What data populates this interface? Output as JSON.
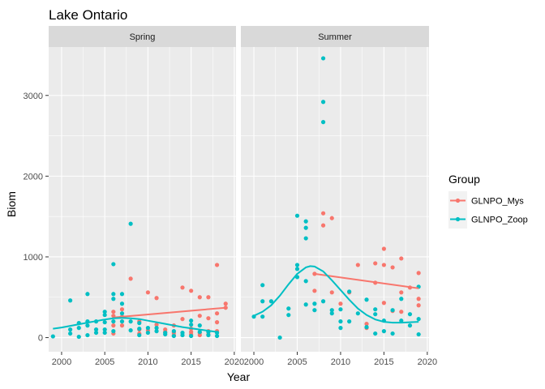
{
  "chart_data": {
    "type": "scatter",
    "title": "Lake Ontario",
    "xlabel": "Year",
    "ylabel": "Biom",
    "xlim": [
      1998.5,
      2020.2
    ],
    "ylim": [
      -175,
      3600
    ],
    "x_ticks": [
      2000,
      2005,
      2010,
      2015,
      2020
    ],
    "x_tick_labels": [
      "2000",
      "2005",
      "2010",
      "2015",
      "2020"
    ],
    "y_ticks": [
      0,
      1000,
      2000,
      3000
    ],
    "y_tick_labels": [
      "0",
      "1000",
      "2000",
      "3000"
    ],
    "grid": true,
    "legend_position": "right",
    "legend": {
      "title": "Group",
      "entries": [
        {
          "name": "GLNPO_Mys",
          "color": "#F8766D"
        },
        {
          "name": "GLNPO_Zoop",
          "color": "#00BFC4"
        }
      ]
    },
    "panels": [
      {
        "name": "Spring",
        "series": [
          {
            "name": "GLNPO_Mys",
            "color": "#F8766D",
            "points": [
              [
                2006,
                50
              ],
              [
                2006,
                150
              ],
              [
                2006,
                270
              ],
              [
                2006,
                320
              ],
              [
                2007,
                150
              ],
              [
                2007,
                260
              ],
              [
                2007,
                350
              ],
              [
                2008,
                730
              ],
              [
                2009,
                50
              ],
              [
                2009,
                100
              ],
              [
                2009,
                200
              ],
              [
                2010,
                560
              ],
              [
                2010,
                90
              ],
              [
                2011,
                490
              ],
              [
                2011,
                160
              ],
              [
                2012,
                70
              ],
              [
                2012,
                100
              ],
              [
                2013,
                150
              ],
              [
                2013,
                30
              ],
              [
                2013,
                60
              ],
              [
                2014,
                620
              ],
              [
                2014,
                230
              ],
              [
                2015,
                580
              ],
              [
                2015,
                110
              ],
              [
                2015,
                40
              ],
              [
                2015,
                70
              ],
              [
                2016,
                500
              ],
              [
                2016,
                270
              ],
              [
                2016,
                30
              ],
              [
                2016,
                60
              ],
              [
                2017,
                500
              ],
              [
                2017,
                240
              ],
              [
                2017,
                80
              ],
              [
                2017,
                40
              ],
              [
                2018,
                900
              ],
              [
                2018,
                190
              ],
              [
                2018,
                300
              ],
              [
                2018,
                80
              ],
              [
                2019,
                370
              ],
              [
                2019,
                420
              ]
            ]
          },
          {
            "name": "GLNPO_Zoop",
            "color": "#00BFC4",
            "points": [
              [
                1999,
                15
              ],
              [
                2001,
                460
              ],
              [
                2001,
                50
              ],
              [
                2001,
                100
              ],
              [
                2002,
                10
              ],
              [
                2002,
                120
              ],
              [
                2002,
                180
              ],
              [
                2003,
                540
              ],
              [
                2003,
                150
              ],
              [
                2003,
                30
              ],
              [
                2003,
                200
              ],
              [
                2004,
                200
              ],
              [
                2004,
                100
              ],
              [
                2004,
                60
              ],
              [
                2005,
                280
              ],
              [
                2005,
                320
              ],
              [
                2005,
                190
              ],
              [
                2005,
                100
              ],
              [
                2005,
                60
              ],
              [
                2006,
                910
              ],
              [
                2006,
                540
              ],
              [
                2006,
                480
              ],
              [
                2006,
                200
              ],
              [
                2006,
                80
              ],
              [
                2007,
                540
              ],
              [
                2007,
                420
              ],
              [
                2007,
                300
              ],
              [
                2007,
                200
              ],
              [
                2008,
                1410
              ],
              [
                2008,
                200
              ],
              [
                2008,
                90
              ],
              [
                2009,
                180
              ],
              [
                2009,
                110
              ],
              [
                2009,
                30
              ],
              [
                2010,
                120
              ],
              [
                2010,
                60
              ],
              [
                2011,
                120
              ],
              [
                2011,
                80
              ],
              [
                2012,
                60
              ],
              [
                2012,
                40
              ],
              [
                2013,
                80
              ],
              [
                2013,
                20
              ],
              [
                2014,
                30
              ],
              [
                2014,
                60
              ],
              [
                2015,
                210
              ],
              [
                2015,
                160
              ],
              [
                2015,
                20
              ],
              [
                2016,
                150
              ],
              [
                2016,
                70
              ],
              [
                2017,
                70
              ],
              [
                2017,
                30
              ],
              [
                2018,
                60
              ],
              [
                2018,
                20
              ]
            ]
          }
        ],
        "trend_lines": [
          {
            "name": "GLNPO_Mys",
            "color": "#F8766D",
            "points": [
              [
                2006,
                250
              ],
              [
                2019,
                370
              ]
            ]
          },
          {
            "name": "GLNPO_Zoop",
            "color": "#00BFC4",
            "points": [
              [
                1999,
                110
              ],
              [
                2000,
                125
              ],
              [
                2001,
                145
              ],
              [
                2002,
                165
              ],
              [
                2003,
                185
              ],
              [
                2004,
                205
              ],
              [
                2005,
                225
              ],
              [
                2006,
                240
              ],
              [
                2007,
                245
              ],
              [
                2008,
                240
              ],
              [
                2009,
                230
              ],
              [
                2010,
                210
              ],
              [
                2011,
                190
              ],
              [
                2012,
                170
              ],
              [
                2013,
                150
              ],
              [
                2014,
                130
              ],
              [
                2015,
                115
              ],
              [
                2016,
                100
              ],
              [
                2017,
                85
              ],
              [
                2018,
                70
              ]
            ]
          }
        ]
      },
      {
        "name": "Summer",
        "series": [
          {
            "name": "GLNPO_Mys",
            "color": "#F8766D",
            "points": [
              [
                2007,
                790
              ],
              [
                2007,
                580
              ],
              [
                2008,
                1540
              ],
              [
                2008,
                1390
              ],
              [
                2009,
                1480
              ],
              [
                2009,
                560
              ],
              [
                2010,
                420
              ],
              [
                2011,
                560
              ],
              [
                2012,
                900
              ],
              [
                2013,
                170
              ],
              [
                2013,
                120
              ],
              [
                2014,
                920
              ],
              [
                2014,
                680
              ],
              [
                2015,
                1100
              ],
              [
                2015,
                900
              ],
              [
                2015,
                430
              ],
              [
                2016,
                870
              ],
              [
                2016,
                330
              ],
              [
                2017,
                980
              ],
              [
                2017,
                560
              ],
              [
                2017,
                320
              ],
              [
                2018,
                620
              ],
              [
                2019,
                800
              ],
              [
                2019,
                480
              ],
              [
                2019,
                400
              ]
            ]
          },
          {
            "name": "GLNPO_Zoop",
            "color": "#00BFC4",
            "points": [
              [
                2000,
                260
              ],
              [
                2001,
                650
              ],
              [
                2001,
                260
              ],
              [
                2001,
                450
              ],
              [
                2002,
                450
              ],
              [
                2003,
                0
              ],
              [
                2004,
                360
              ],
              [
                2004,
                280
              ],
              [
                2005,
                1510
              ],
              [
                2005,
                900
              ],
              [
                2005,
                850
              ],
              [
                2005,
                750
              ],
              [
                2006,
                1440
              ],
              [
                2006,
                1360
              ],
              [
                2006,
                1230
              ],
              [
                2006,
                410
              ],
              [
                2006,
                700
              ],
              [
                2007,
                420
              ],
              [
                2007,
                340
              ],
              [
                2008,
                3460
              ],
              [
                2008,
                2920
              ],
              [
                2008,
                2670
              ],
              [
                2008,
                450
              ],
              [
                2009,
                340
              ],
              [
                2009,
                300
              ],
              [
                2010,
                350
              ],
              [
                2010,
                200
              ],
              [
                2010,
                120
              ],
              [
                2011,
                200
              ],
              [
                2011,
                570
              ],
              [
                2012,
                300
              ],
              [
                2013,
                470
              ],
              [
                2013,
                130
              ],
              [
                2014,
                350
              ],
              [
                2014,
                290
              ],
              [
                2014,
                50
              ],
              [
                2015,
                210
              ],
              [
                2015,
                80
              ],
              [
                2016,
                340
              ],
              [
                2016,
                50
              ],
              [
                2017,
                480
              ],
              [
                2017,
                210
              ],
              [
                2018,
                290
              ],
              [
                2018,
                150
              ],
              [
                2019,
                630
              ],
              [
                2019,
                230
              ],
              [
                2019,
                40
              ]
            ]
          }
        ],
        "trend_lines": [
          {
            "name": "GLNPO_Mys",
            "color": "#F8766D",
            "points": [
              [
                2007,
                790
              ],
              [
                2019,
                610
              ]
            ]
          },
          {
            "name": "GLNPO_Zoop",
            "color": "#00BFC4",
            "points": [
              [
                2000,
                270
              ],
              [
                2001,
                320
              ],
              [
                2002,
                400
              ],
              [
                2003,
                520
              ],
              [
                2004,
                660
              ],
              [
                2005,
                790
              ],
              [
                2006,
                870
              ],
              [
                2006.5,
                885
              ],
              [
                2007,
                880
              ],
              [
                2008,
                820
              ],
              [
                2009,
                710
              ],
              [
                2010,
                590
              ],
              [
                2011,
                470
              ],
              [
                2012,
                360
              ],
              [
                2013,
                280
              ],
              [
                2014,
                225
              ],
              [
                2015,
                195
              ],
              [
                2016,
                185
              ],
              [
                2017,
                185
              ],
              [
                2018,
                190
              ],
              [
                2019,
                195
              ]
            ]
          }
        ]
      }
    ]
  }
}
